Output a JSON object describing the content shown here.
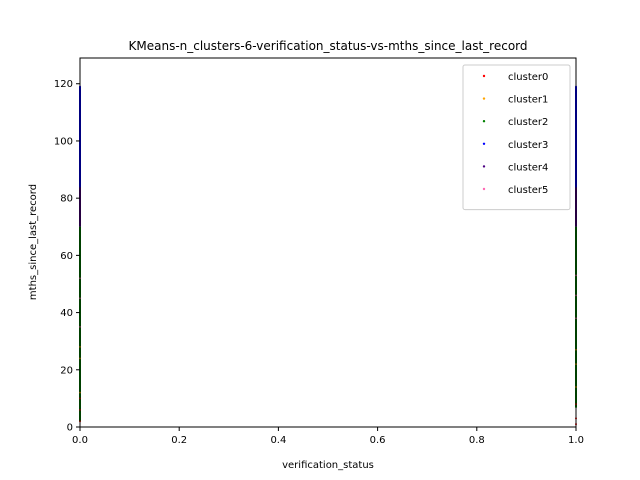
{
  "chart_data": {
    "type": "scatter",
    "title": "KMeans-n_clusters-6-verification_status-vs-mths_since_last_record",
    "xlabel": "verification_status",
    "ylabel": "mths_since_last_record",
    "xlim": [
      0.0,
      1.0
    ],
    "ylim": [
      0,
      129
    ],
    "xticks": [
      "0.0",
      "0.2",
      "0.4",
      "0.6",
      "0.8",
      "1.0"
    ],
    "yticks": [
      "0",
      "20",
      "40",
      "60",
      "80",
      "100",
      "120"
    ],
    "grid": false,
    "legend_position": "top-right",
    "series": [
      {
        "name": "cluster0",
        "color": "#ff0000",
        "points": [
          [
            0,
            2
          ],
          [
            0,
            6
          ],
          [
            0,
            10
          ],
          [
            1,
            1
          ],
          [
            1,
            3
          ],
          [
            1,
            8
          ]
        ]
      },
      {
        "name": "cluster1",
        "color": "#ffa500",
        "points": [
          [
            0,
            12
          ],
          [
            0,
            24
          ],
          [
            0,
            28
          ],
          [
            1,
            14
          ],
          [
            1,
            22
          ],
          [
            1,
            27
          ]
        ]
      },
      {
        "name": "cluster2",
        "color": "#008000",
        "points": [
          [
            0,
            4
          ],
          [
            0,
            8
          ],
          [
            0,
            15
          ],
          [
            0,
            20
          ],
          [
            0,
            31
          ],
          [
            0,
            37
          ],
          [
            0,
            43
          ],
          [
            0,
            48
          ],
          [
            0,
            55
          ],
          [
            0,
            63
          ],
          [
            0,
            69
          ],
          [
            1,
            7
          ],
          [
            1,
            12
          ],
          [
            1,
            19
          ],
          [
            1,
            28
          ],
          [
            1,
            33
          ],
          [
            1,
            41
          ],
          [
            1,
            49
          ],
          [
            1,
            56
          ],
          [
            1,
            60
          ],
          [
            1,
            66
          ]
        ]
      },
      {
        "name": "cluster3",
        "color": "#0000ff",
        "points": [
          [
            0,
            84
          ],
          [
            0,
            90
          ],
          [
            0,
            96
          ],
          [
            0,
            100
          ],
          [
            0,
            104
          ],
          [
            0,
            108
          ],
          [
            0,
            112
          ],
          [
            0,
            116
          ],
          [
            0,
            119
          ],
          [
            1,
            84
          ],
          [
            1,
            89
          ],
          [
            1,
            94
          ],
          [
            1,
            99
          ],
          [
            1,
            103
          ],
          [
            1,
            107
          ],
          [
            1,
            111
          ],
          [
            1,
            115
          ],
          [
            1,
            119
          ]
        ]
      },
      {
        "name": "cluster4",
        "color": "#4b0082",
        "points": [
          [
            0,
            72
          ],
          [
            0,
            75
          ],
          [
            0,
            78
          ],
          [
            0,
            81
          ],
          [
            1,
            72
          ],
          [
            1,
            76
          ],
          [
            1,
            79
          ],
          [
            1,
            82
          ]
        ]
      },
      {
        "name": "cluster5",
        "color": "#ff69b4",
        "points": [
          [
            0,
            35
          ],
          [
            0,
            45
          ],
          [
            0,
            52
          ],
          [
            1,
            38
          ],
          [
            1,
            46
          ],
          [
            1,
            53
          ]
        ]
      }
    ],
    "density_bands": [
      {
        "x": 0,
        "color": "#0000ff",
        "y_from": 84,
        "y_to": 119
      },
      {
        "x": 0,
        "color": "#4b0082",
        "y_from": 70,
        "y_to": 84
      },
      {
        "x": 0,
        "color": "#008000",
        "y_from": 2,
        "y_to": 70
      },
      {
        "x": 1,
        "color": "#0000ff",
        "y_from": 84,
        "y_to": 119
      },
      {
        "x": 1,
        "color": "#4b0082",
        "y_from": 70,
        "y_to": 84
      },
      {
        "x": 1,
        "color": "#008000",
        "y_from": 7,
        "y_to": 70
      }
    ]
  }
}
